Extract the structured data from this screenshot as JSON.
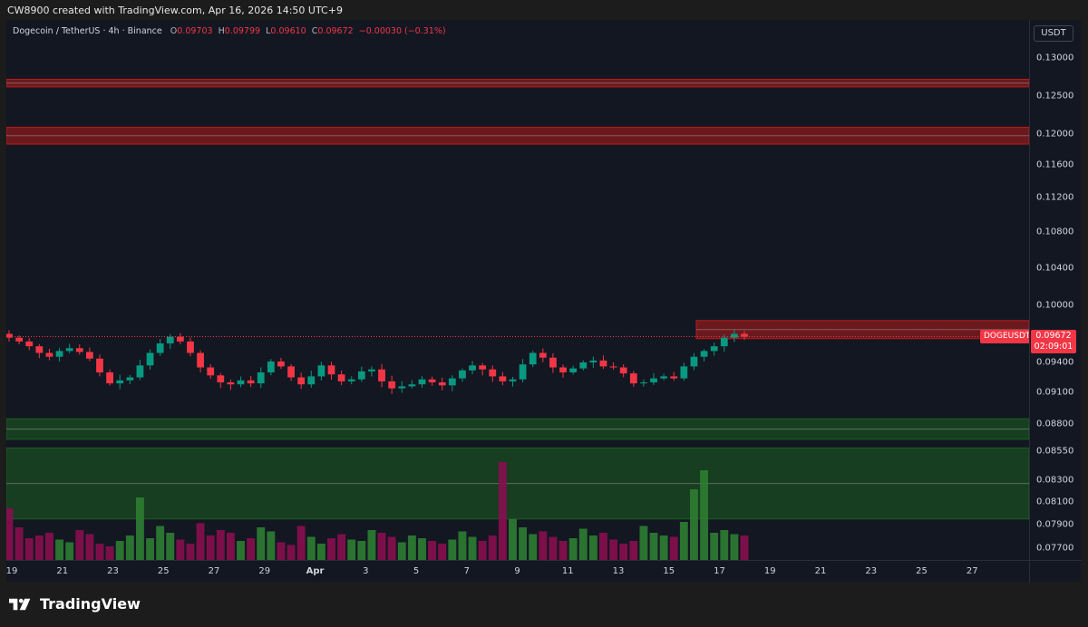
{
  "header": {
    "credit": "CW8900 created with TradingView.com, Apr 16, 2026 14:50 UTC+9"
  },
  "legend": {
    "symbol_line": "Dogecoin / TetherUS · 4h · Binance",
    "open_k": "O",
    "open": "0.09703",
    "high_k": "H",
    "high": "0.09799",
    "low_k": "L",
    "low": "0.09610",
    "close_k": "C",
    "close": "0.09672",
    "change": "−0.00030 (−0.31%)"
  },
  "price_axis": {
    "currency": "USDT",
    "ticks": [
      "0.13000",
      "0.12500",
      "0.12000",
      "0.11600",
      "0.11200",
      "0.10800",
      "0.10400",
      "0.10000",
      "0.09400",
      "0.09100",
      "0.08800",
      "0.08550",
      "0.08300",
      "0.08100",
      "0.07900",
      "0.07700"
    ]
  },
  "price_marker": {
    "symbol": "DOGEUSDT",
    "price": "0.09672",
    "countdown": "02:09:01"
  },
  "time_axis": {
    "ticks": [
      "19",
      "21",
      "23",
      "25",
      "27",
      "29",
      "Apr",
      "3",
      "5",
      "7",
      "9",
      "11",
      "13",
      "15",
      "17",
      "19",
      "21",
      "23",
      "25",
      "27"
    ]
  },
  "brand": {
    "name": "TradingView"
  },
  "colors": {
    "up": "#089981",
    "down": "#f23645",
    "vol_up": "#2e7d32",
    "vol_down": "#880e4f",
    "resistance": "#b71c1c",
    "support": "#1b5e20",
    "background": "#131722"
  },
  "chart_data": {
    "type": "candlestick",
    "symbol": "DOGEUSDT",
    "interval": "4h",
    "exchange": "Binance",
    "x_ticks": [
      "19",
      "21",
      "23",
      "25",
      "27",
      "29",
      "Apr",
      "3",
      "5",
      "7",
      "9",
      "11",
      "13",
      "15",
      "17",
      "19",
      "21",
      "23",
      "25",
      "27"
    ],
    "y_ticks": [
      0.13,
      0.125,
      0.12,
      0.116,
      0.112,
      0.108,
      0.104,
      0.1,
      0.094,
      0.091,
      0.088,
      0.0855,
      0.083,
      0.081,
      0.079,
      0.077
    ],
    "series": [
      {
        "name": "DOGEUSDT",
        "close_path": [
          0.0966,
          0.0962,
          0.0957,
          0.095,
          0.0946,
          0.0952,
          0.0955,
          0.0951,
          0.0944,
          0.093,
          0.0919,
          0.0922,
          0.0925,
          0.0937,
          0.095,
          0.096,
          0.0967,
          0.0962,
          0.095,
          0.0935,
          0.0927,
          0.092,
          0.0918,
          0.0922,
          0.0919,
          0.093,
          0.0941,
          0.0936,
          0.0925,
          0.0918,
          0.0926,
          0.0937,
          0.0928,
          0.0921,
          0.0923,
          0.0931,
          0.0933,
          0.0921,
          0.0914,
          0.0916,
          0.0918,
          0.0923,
          0.092,
          0.0917,
          0.0924,
          0.0932,
          0.0937,
          0.0933,
          0.0926,
          0.0921,
          0.0923,
          0.0938,
          0.095,
          0.0945,
          0.0935,
          0.093,
          0.0934,
          0.094,
          0.0942,
          0.0936,
          0.0935,
          0.0929,
          0.0919,
          0.092,
          0.0924,
          0.0926,
          0.0924,
          0.0936,
          0.0946,
          0.0952,
          0.0957,
          0.0966,
          0.097,
          0.0967
        ]
      }
    ],
    "volume": [
      0.38,
      0.24,
      0.16,
      0.18,
      0.2,
      0.15,
      0.13,
      0.22,
      0.19,
      0.12,
      0.1,
      0.14,
      0.18,
      0.46,
      0.16,
      0.25,
      0.2,
      0.15,
      0.12,
      0.27,
      0.18,
      0.22,
      0.2,
      0.14,
      0.16,
      0.24,
      0.21,
      0.13,
      0.11,
      0.25,
      0.17,
      0.12,
      0.16,
      0.19,
      0.15,
      0.14,
      0.22,
      0.2,
      0.17,
      0.13,
      0.18,
      0.16,
      0.14,
      0.12,
      0.15,
      0.21,
      0.17,
      0.14,
      0.18,
      0.72,
      0.3,
      0.24,
      0.19,
      0.21,
      0.17,
      0.14,
      0.16,
      0.23,
      0.18,
      0.2,
      0.15,
      0.12,
      0.14,
      0.25,
      0.2,
      0.18,
      0.17,
      0.28,
      0.52,
      0.66,
      0.2,
      0.22,
      0.19,
      0.18
    ],
    "zones": [
      {
        "kind": "resistance",
        "from": 0.1262,
        "to": 0.1272
      },
      {
        "kind": "resistance",
        "from": 0.1187,
        "to": 0.1209
      },
      {
        "kind": "resistance",
        "from": 0.0965,
        "to": 0.0984
      },
      {
        "kind": "support",
        "from": 0.0866,
        "to": 0.0885
      },
      {
        "kind": "support",
        "from": 0.0795,
        "to": 0.0858
      }
    ],
    "last_price": 0.09672,
    "grid": false
  }
}
